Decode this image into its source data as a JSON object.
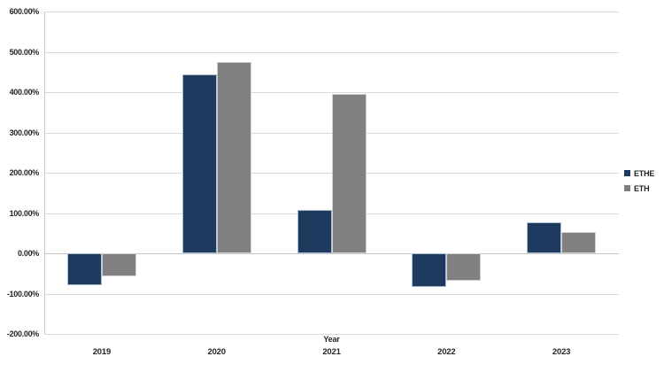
{
  "chart_data": {
    "type": "bar",
    "title": "",
    "xlabel": "Year",
    "ylabel": "",
    "categories": [
      "2019",
      "2020",
      "2021",
      "2022",
      "2023"
    ],
    "series": [
      {
        "name": "ETHE",
        "color": "#1F3A5F",
        "border_color": "#A8BFD4",
        "values": [
          -80,
          443,
          107,
          -83,
          78
        ]
      },
      {
        "name": "ETH",
        "color": "#808080",
        "border_color": "#D2D2D2",
        "values": [
          -58,
          475,
          396,
          -68,
          53
        ]
      }
    ],
    "ylim": [
      -200,
      600
    ],
    "ytick_step": 100,
    "yticks": [
      {
        "value": 600,
        "label": "600.00%"
      },
      {
        "value": 500,
        "label": "500.00%"
      },
      {
        "value": 400,
        "label": "400.00%"
      },
      {
        "value": 300,
        "label": "300.00%"
      },
      {
        "value": 200,
        "label": "200.00%"
      },
      {
        "value": 100,
        "label": "100.00%"
      },
      {
        "value": 0,
        "label": "0.00%"
      },
      {
        "value": -100,
        "label": "-100.00%"
      },
      {
        "value": -200,
        "label": "-200.00%"
      }
    ],
    "grid": true,
    "legend_position": "right",
    "legend": [
      "ETHE",
      "ETH"
    ]
  },
  "colors": {
    "background": "#ffffff",
    "gridline": "#d9d9d9",
    "axis_line": "#c6c6c6",
    "text": "#262626"
  }
}
